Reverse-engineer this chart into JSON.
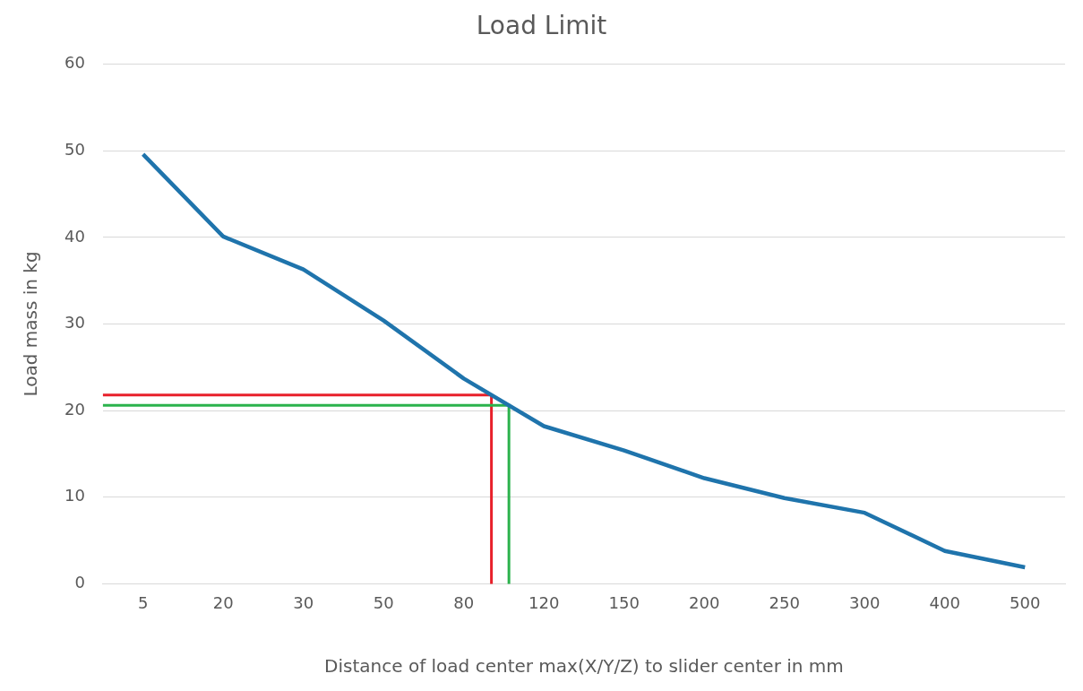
{
  "chart_data": {
    "type": "line",
    "title": "Load Limit",
    "xlabel": "Distance of load center max(X/Y/Z) to slider center in mm",
    "ylabel": "Load mass in kg",
    "categories": [
      "5",
      "20",
      "30",
      "50",
      "80",
      "120",
      "150",
      "200",
      "250",
      "300",
      "400",
      "500"
    ],
    "ylim": [
      0,
      60
    ],
    "yticks": [
      0,
      10,
      20,
      30,
      40,
      50,
      60
    ],
    "grid": "y",
    "legend": false,
    "marker": "none",
    "series": [
      {
        "color": "#1f74ac",
        "values": [
          49.6,
          40.1,
          36.3,
          30.4,
          23.7,
          18.2,
          15.4,
          12.2,
          9.9,
          8.2,
          3.8,
          1.9
        ]
      }
    ],
    "ref_lines": [
      {
        "axis": "y",
        "value": 21.8,
        "color": "#e8202a"
      },
      {
        "axis": "y",
        "value": 20.6,
        "color": "#2bb24c"
      }
    ]
  }
}
